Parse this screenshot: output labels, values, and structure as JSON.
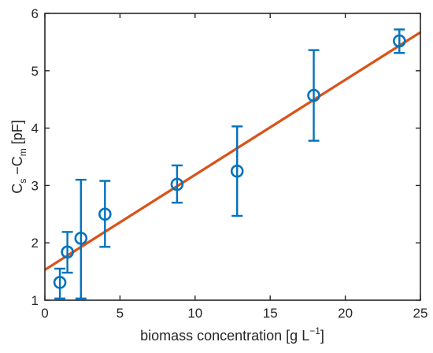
{
  "chart_data": {
    "type": "scatter",
    "xlabel": "biomass concentration [g L",
    "xlabel_sup": "−1",
    "xlabel_end": "]",
    "ylabel_parts": [
      "C",
      "s",
      " −C",
      "m",
      " [pF]"
    ],
    "xlim": [
      0,
      25
    ],
    "ylim": [
      1,
      6
    ],
    "xticks": [
      0,
      5,
      10,
      15,
      20,
      25
    ],
    "yticks": [
      1,
      2,
      3,
      4,
      5,
      6
    ],
    "xtick_labels": [
      "0",
      "5",
      "10",
      "15",
      "20",
      "25"
    ],
    "ytick_labels": [
      "1",
      "2",
      "3",
      "4",
      "5",
      "6"
    ],
    "grid": false,
    "series": [
      {
        "marker": "circle",
        "color": "#0072BD",
        "x": [
          1.0,
          1.5,
          2.4,
          4.0,
          8.8,
          12.8,
          17.9,
          23.6
        ],
        "y": [
          1.31,
          1.84,
          2.08,
          2.5,
          3.02,
          3.25,
          4.57,
          5.52
        ],
        "err_low": [
          1.03,
          1.48,
          1.03,
          1.93,
          2.7,
          2.47,
          3.78,
          5.31
        ],
        "err_high": [
          1.55,
          2.19,
          3.1,
          3.08,
          3.35,
          4.03,
          5.36,
          5.72
        ]
      }
    ],
    "fit_line": {
      "color": "#D95319",
      "x": [
        0,
        25
      ],
      "y": [
        1.53,
        5.67
      ]
    }
  }
}
